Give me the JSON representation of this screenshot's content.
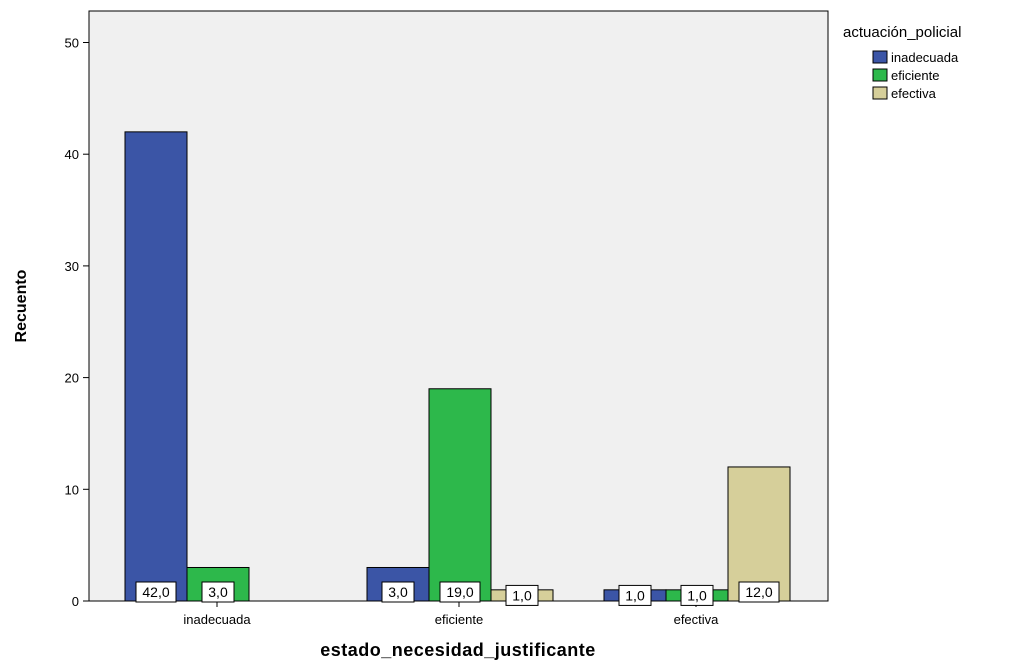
{
  "chart_data": {
    "type": "bar",
    "title": "",
    "xlabel": "estado_necesidad_justificante",
    "ylabel": "Recuento",
    "ylim": [
      0,
      50
    ],
    "yticks": [
      0,
      10,
      20,
      30,
      40,
      50
    ],
    "grid": false,
    "legend_position": "top-right",
    "legend_title": "actuación_policial",
    "categories": [
      "inadecuada",
      "eficiente",
      "efectiva"
    ],
    "series": [
      {
        "name": "inadecuada",
        "color": "#3b55a6",
        "values": [
          42,
          3,
          1
        ],
        "labels": [
          "42,0",
          "3,0",
          "1,0"
        ]
      },
      {
        "name": "eficiente",
        "color": "#2db84b",
        "values": [
          3,
          19,
          1
        ],
        "labels": [
          "3,0",
          "19,0",
          "1,0"
        ]
      },
      {
        "name": "efectiva",
        "color": "#d6cf9a",
        "values": [
          0,
          1,
          12
        ],
        "labels": [
          "",
          "1,0",
          "12,0"
        ]
      }
    ],
    "plot_background": "#f0f0f0"
  }
}
